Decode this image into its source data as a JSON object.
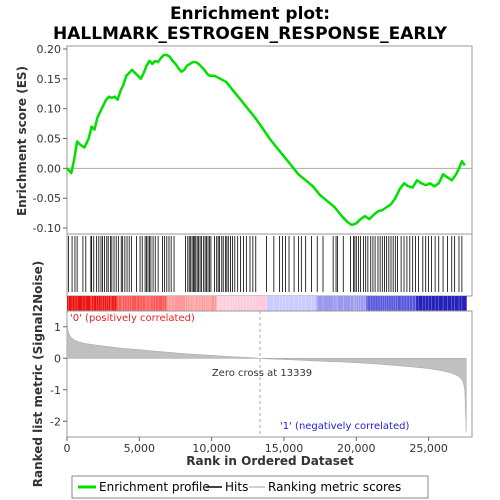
{
  "chart_data": {
    "type": "line",
    "title_line1": "Enrichment plot:",
    "title_line2": "HALLMARK_ESTROGEN_RESPONSE_EARLY",
    "ylabel_top": "Enrichment score (ES)",
    "ylabel_bottom": "Ranked list metric (Signal2Noise)",
    "xlabel": "Rank in Ordered Dataset",
    "xlim": [
      0,
      28000
    ],
    "ylim_es": [
      -0.11,
      0.205
    ],
    "ylim_metric": [
      -2.5,
      1.5
    ],
    "x_ticks": [
      {
        "value": 0,
        "label": "0"
      },
      {
        "value": 5000,
        "label": "5,000"
      },
      {
        "value": 10000,
        "label": "10,000"
      },
      {
        "value": 15000,
        "label": "15,000"
      },
      {
        "value": 20000,
        "label": "20,000"
      },
      {
        "value": 25000,
        "label": "25,000"
      }
    ],
    "es_ticks": [
      {
        "value": 0.2,
        "label": "0.20"
      },
      {
        "value": 0.15,
        "label": "0.15"
      },
      {
        "value": 0.1,
        "label": "0.10"
      },
      {
        "value": 0.05,
        "label": "0.05"
      },
      {
        "value": 0.0,
        "label": "0.00"
      },
      {
        "value": -0.05,
        "label": "-0.05"
      },
      {
        "value": -0.1,
        "label": "-0.10"
      }
    ],
    "metric_ticks": [
      {
        "value": 1,
        "label": "1"
      },
      {
        "value": 0,
        "label": "0"
      },
      {
        "value": -1,
        "label": "-1"
      },
      {
        "value": -2,
        "label": "-2"
      }
    ],
    "series": [
      {
        "name": "Enrichment profile",
        "color": "#00e000",
        "x": [
          0,
          300,
          500,
          700,
          900,
          1200,
          1500,
          1700,
          1900,
          2100,
          2300,
          2500,
          2700,
          2900,
          3100,
          3300,
          3500,
          3700,
          3900,
          4100,
          4300,
          4500,
          4700,
          4900,
          5100,
          5300,
          5500,
          5700,
          5900,
          6100,
          6300,
          6500,
          6700,
          6900,
          7100,
          7300,
          7500,
          7700,
          7900,
          8100,
          8300,
          8500,
          8700,
          8900,
          9100,
          9300,
          9500,
          9700,
          9900,
          10200,
          10600,
          11000,
          11500,
          12000,
          12500,
          13000,
          13500,
          14000,
          14500,
          15000,
          15500,
          16000,
          16500,
          17000,
          17500,
          18000,
          18500,
          19000,
          19400,
          19700,
          20000,
          20300,
          20600,
          20900,
          21200,
          21500,
          21800,
          22100,
          22400,
          22700,
          23000,
          23300,
          23600,
          23900,
          24200,
          24500,
          24800,
          25100,
          25400,
          25700,
          26000,
          26300,
          26600,
          26900,
          27100,
          27300,
          27500
        ],
        "y": [
          0.0,
          -0.008,
          0.015,
          0.045,
          0.04,
          0.035,
          0.05,
          0.07,
          0.065,
          0.085,
          0.095,
          0.105,
          0.115,
          0.12,
          0.118,
          0.12,
          0.115,
          0.13,
          0.14,
          0.155,
          0.16,
          0.165,
          0.16,
          0.155,
          0.15,
          0.16,
          0.172,
          0.18,
          0.175,
          0.18,
          0.178,
          0.185,
          0.19,
          0.19,
          0.187,
          0.18,
          0.175,
          0.168,
          0.162,
          0.165,
          0.172,
          0.175,
          0.178,
          0.178,
          0.175,
          0.17,
          0.165,
          0.158,
          0.155,
          0.155,
          0.15,
          0.145,
          0.13,
          0.115,
          0.1,
          0.085,
          0.068,
          0.05,
          0.035,
          0.02,
          0.005,
          -0.01,
          -0.02,
          -0.03,
          -0.045,
          -0.055,
          -0.065,
          -0.08,
          -0.09,
          -0.095,
          -0.092,
          -0.085,
          -0.08,
          -0.085,
          -0.078,
          -0.072,
          -0.07,
          -0.065,
          -0.06,
          -0.05,
          -0.035,
          -0.025,
          -0.03,
          -0.032,
          -0.02,
          -0.025,
          -0.028,
          -0.025,
          -0.03,
          -0.025,
          -0.01,
          -0.015,
          -0.02,
          -0.01,
          0.0,
          0.012,
          0.005
        ]
      },
      {
        "name": "Ranking metric scores",
        "color": "#c0c0c0",
        "x": [
          0,
          50,
          150,
          300,
          500,
          800,
          1200,
          2000,
          3000,
          4000,
          5000,
          6000,
          7000,
          8000,
          9000,
          10000,
          11000,
          12000,
          13000,
          13339,
          14000,
          15000,
          16000,
          17000,
          18000,
          19000,
          20000,
          21000,
          22000,
          23000,
          24000,
          25000,
          26000,
          26500,
          27000,
          27200,
          27400,
          27500,
          27600
        ],
        "y": [
          1.4,
          0.9,
          0.75,
          0.65,
          0.58,
          0.52,
          0.47,
          0.42,
          0.36,
          0.31,
          0.27,
          0.23,
          0.19,
          0.15,
          0.12,
          0.09,
          0.06,
          0.04,
          0.01,
          0.0,
          -0.02,
          -0.04,
          -0.06,
          -0.08,
          -0.1,
          -0.12,
          -0.14,
          -0.17,
          -0.2,
          -0.24,
          -0.28,
          -0.33,
          -0.4,
          -0.46,
          -0.55,
          -0.62,
          -0.75,
          -1.0,
          -2.35
        ]
      }
    ],
    "hits": [
      100,
      350,
      550,
      700,
      1100,
      1300,
      1650,
      1700,
      1850,
      2050,
      2200,
      2350,
      2450,
      2600,
      2750,
      2850,
      3000,
      3100,
      3250,
      3400,
      3550,
      3750,
      3850,
      4000,
      4150,
      4300,
      4450,
      4800,
      5050,
      5200,
      5400,
      5500,
      5600,
      5700,
      5800,
      5950,
      6100,
      6300,
      6600,
      6750,
      6900,
      7050,
      7200,
      7400,
      8200,
      8350,
      8450,
      8550,
      8650,
      8750,
      8800,
      8900,
      9000,
      9100,
      9200,
      9300,
      9450,
      9550,
      9650,
      9750,
      9850,
      9950,
      10200,
      10350,
      10450,
      10550,
      10700,
      10800,
      10950,
      11050,
      11150,
      11300,
      11450,
      11600,
      11800,
      12000,
      12200,
      12400,
      12650,
      12850,
      13050,
      13800,
      14300,
      14700,
      14900,
      15100,
      15350,
      15700,
      16000,
      16200,
      16500,
      16900,
      17300,
      17700,
      18400,
      18600,
      18700,
      19100,
      19600,
      19800,
      19900,
      20000,
      20150,
      20300,
      20500,
      20650,
      20800,
      21000,
      21150,
      21300,
      21500,
      21650,
      21800,
      21950,
      22100,
      22250,
      22400,
      22550,
      22700,
      22850,
      23100,
      23300,
      23500,
      23700,
      23900,
      24100,
      24300,
      24600,
      24800,
      25000,
      25200,
      25450,
      25700,
      26000,
      26300,
      26600,
      26800,
      27100,
      27300
    ],
    "ranked_bar_colors": [
      "#ee1111",
      "#ff5555",
      "#ff9999",
      "#ffccdd",
      "#ccccff",
      "#9999ee",
      "#5555dd",
      "#2222bb"
    ],
    "annotation_positive": "'0' (positively correlated)",
    "annotation_negative": "'1' (negatively correlated)",
    "zero_cross_label": "Zero cross at 13339",
    "zero_cross_x": 13339,
    "positive_label_color": "#ee2222",
    "negative_label_color": "#2222dd",
    "legend": [
      {
        "label": "Enrichment profile",
        "color": "#00e000"
      },
      {
        "label": "Hits",
        "color": "#000000"
      },
      {
        "label": "Ranking metric scores",
        "color": "#c0c0c0"
      }
    ]
  }
}
